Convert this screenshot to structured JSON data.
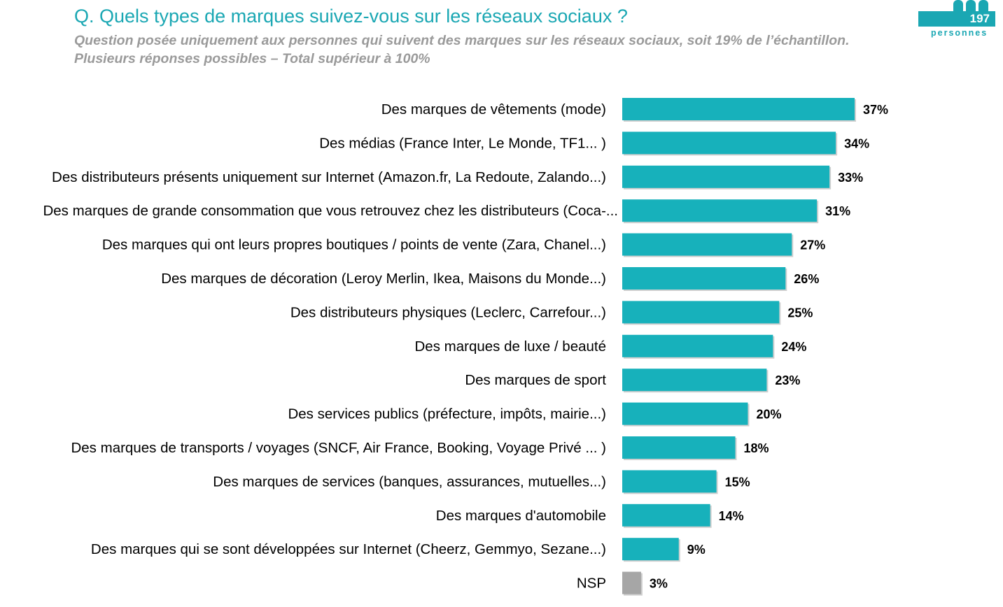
{
  "header": {
    "title": "Q. Quels types de marques suivez-vous sur les réseaux sociaux ?",
    "subtitle_line1": "Question posée uniquement aux personnes qui suivent des marques sur les réseaux sociaux, soit 19% de l’échantillon.",
    "subtitle_line2": "Plusieurs réponses possibles – Total supérieur à 100%"
  },
  "badge": {
    "count": "197",
    "label": "personnes",
    "icon": "people-icon"
  },
  "colors": {
    "accent": "#1aa7b3",
    "bar": "#17b1bb",
    "nsp_bar": "#a6a6a6",
    "subtitle": "#9a9a9a"
  },
  "chart_data": {
    "type": "bar",
    "orientation": "horizontal",
    "categories": [
      "Des marques de vêtements (mode)",
      "Des médias (France Inter, Le Monde, TF1... )",
      "Des distributeurs présents uniquement sur Internet (Amazon.fr, La Redoute, Zalando...)",
      "Des marques de grande consommation que vous retrouvez chez les distributeurs (Coca-...",
      "Des marques qui ont leurs propres boutiques / points de vente (Zara, Chanel...)",
      "Des marques de décoration (Leroy Merlin, Ikea, Maisons du Monde...)",
      "Des distributeurs physiques (Leclerc, Carrefour...)",
      "Des marques de luxe / beauté",
      "Des marques de sport",
      "Des services publics (préfecture, impôts, mairie...)",
      "Des marques de transports / voyages (SNCF, Air France, Booking, Voyage Privé ... )",
      "Des marques de services (banques, assurances, mutuelles...)",
      "Des marques d'automobile",
      "Des marques qui se sont développées sur Internet (Cheerz, Gemmyo, Sezane...)",
      "NSP"
    ],
    "values": [
      37,
      34,
      33,
      31,
      27,
      26,
      25,
      24,
      23,
      20,
      18,
      15,
      14,
      9,
      3
    ],
    "value_labels": [
      "37%",
      "34%",
      "33%",
      "31%",
      "27%",
      "26%",
      "25%",
      "24%",
      "23%",
      "20%",
      "18%",
      "15%",
      "14%",
      "9%",
      "3%"
    ],
    "highlight_gray": [
      "NSP"
    ],
    "unit": "%",
    "xlim": [
      0,
      37
    ],
    "grid": false,
    "legend": "none"
  }
}
